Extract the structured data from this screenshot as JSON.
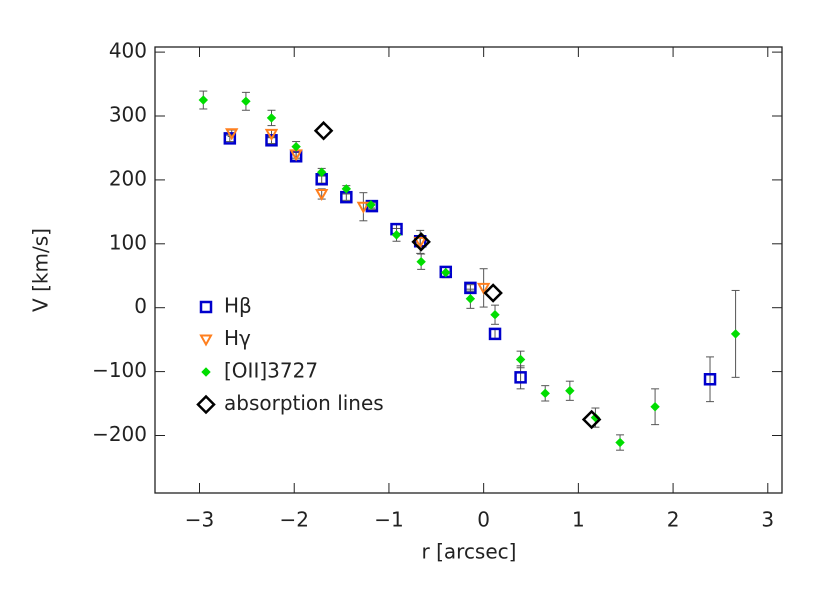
{
  "chart_data": {
    "type": "scatter",
    "xlabel": "r [arcsec]",
    "ylabel": "V [km/s]",
    "xlim": [
      -3.47,
      3.15
    ],
    "ylim": [
      -290,
      408
    ],
    "xticks": [
      {
        "value": -3,
        "label": "−3"
      },
      {
        "value": -2,
        "label": "−2"
      },
      {
        "value": -1,
        "label": "−1"
      },
      0,
      1,
      2,
      3
    ],
    "yticks": [
      {
        "value": -200,
        "label": "−200"
      },
      {
        "value": -100,
        "label": "−100"
      },
      0,
      100,
      200,
      300,
      400
    ],
    "legend": "upper-left-lower",
    "series": [
      {
        "name": "Hβ",
        "marker": "square",
        "color": "#0000cc",
        "x": [
          -2.68,
          -2.24,
          -1.98,
          -1.71,
          -1.45,
          -1.18,
          -0.92,
          -0.67,
          -0.4,
          -0.14,
          0.12,
          0.39,
          2.39
        ],
        "values": [
          265,
          262,
          237,
          201,
          173,
          159,
          123,
          104,
          56,
          31,
          -41,
          -109,
          -112
        ],
        "errors": [
          5,
          5,
          6,
          6,
          5,
          5,
          8,
          8,
          8,
          5,
          8,
          18,
          35
        ]
      },
      {
        "name": "Hγ",
        "marker": "triangle",
        "color": "#ff7f1e",
        "x": [
          -2.66,
          -2.24,
          -1.98,
          -1.71,
          -1.27,
          -0.67,
          0.0
        ],
        "values": [
          273,
          272,
          240,
          178,
          158,
          103,
          31
        ],
        "errors": [
          5,
          6,
          6,
          8,
          22,
          18,
          30
        ]
      },
      {
        "name": "[OII]3727",
        "marker": "diamond-filled",
        "color": "#00dd00",
        "x": [
          -2.96,
          -2.51,
          -2.24,
          -1.98,
          -1.71,
          -1.45,
          -1.19,
          -0.92,
          -0.66,
          -0.4,
          -0.14,
          0.12,
          0.39,
          0.65,
          0.91,
          1.18,
          1.44,
          1.81,
          2.66
        ],
        "values": [
          325,
          323,
          297,
          252,
          212,
          186,
          161,
          114,
          72,
          55,
          14,
          -11,
          -81,
          -134,
          -130,
          -172,
          -211,
          -155,
          -41
        ],
        "errors": [
          14,
          14,
          12,
          8,
          6,
          5,
          5,
          10,
          12,
          8,
          15,
          15,
          13,
          12,
          15,
          15,
          12,
          28,
          68
        ]
      },
      {
        "name": "absorption lines",
        "marker": "diamond-open",
        "color": "#000000",
        "x": [
          -1.69,
          -0.66,
          0.1,
          1.14
        ],
        "values": [
          277,
          103,
          23,
          -175
        ]
      }
    ]
  }
}
